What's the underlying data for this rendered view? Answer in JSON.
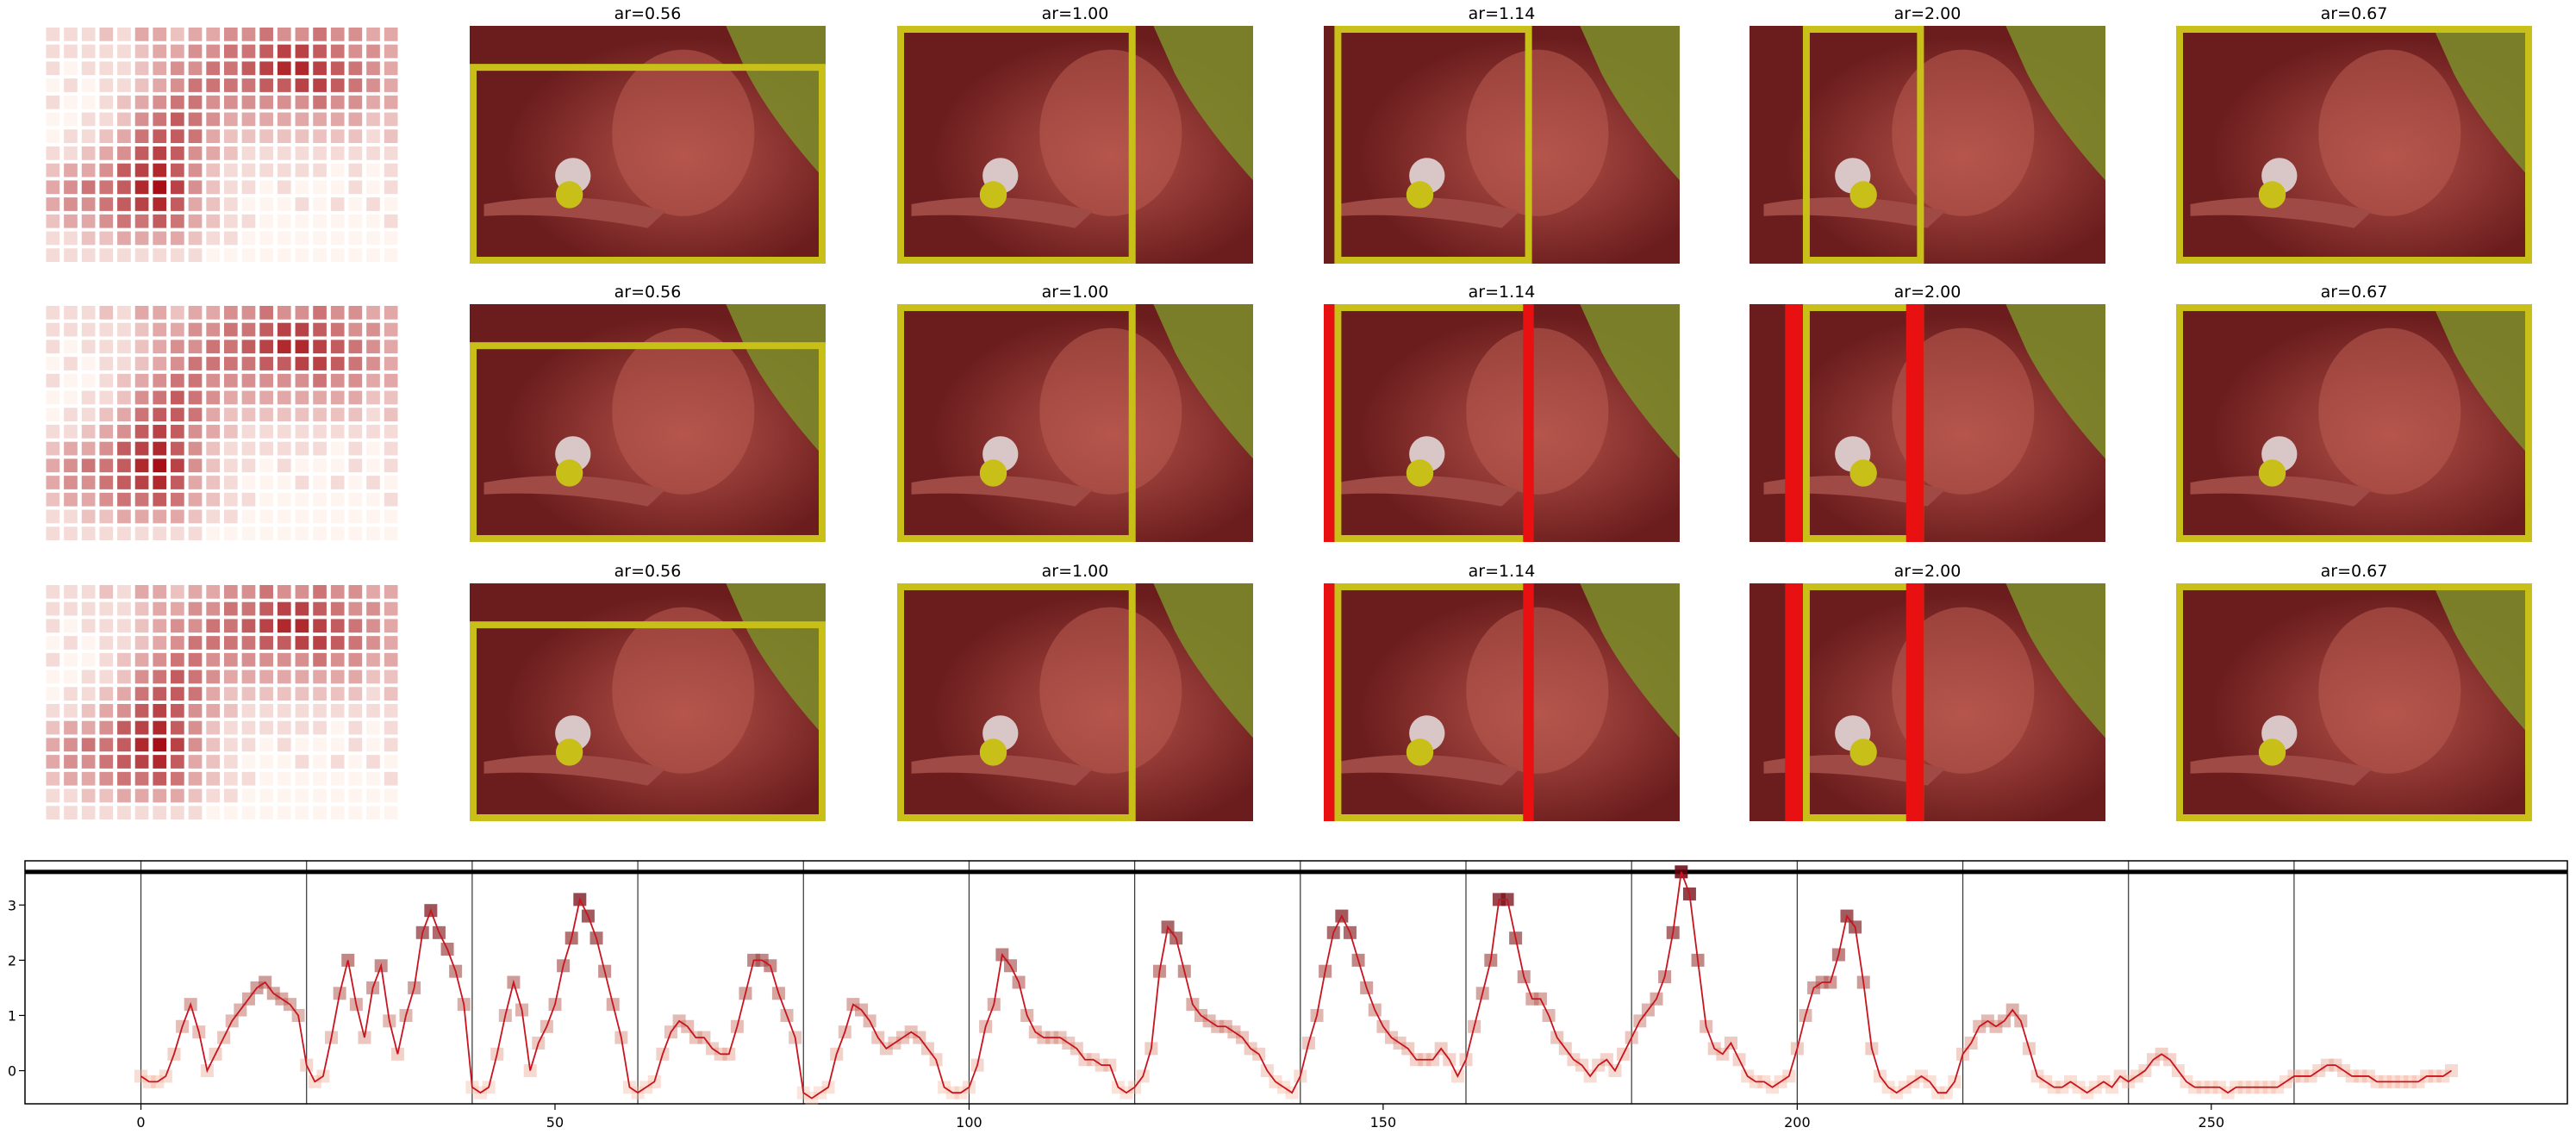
{
  "heatmap": [
    [
      1,
      1,
      1,
      2,
      1,
      3,
      3,
      2,
      3,
      3,
      4,
      4,
      5,
      4,
      4,
      5,
      4,
      4,
      3,
      3
    ],
    [
      1,
      1,
      1,
      1,
      1,
      2,
      3,
      3,
      4,
      4,
      5,
      5,
      6,
      7,
      7,
      6,
      5,
      4,
      4,
      3
    ],
    [
      1,
      0,
      1,
      1,
      1,
      2,
      3,
      4,
      4,
      5,
      5,
      6,
      7,
      8,
      8,
      7,
      6,
      5,
      4,
      3
    ],
    [
      0,
      1,
      0,
      1,
      1,
      2,
      3,
      4,
      5,
      5,
      5,
      5,
      6,
      6,
      7,
      7,
      6,
      5,
      4,
      3
    ],
    [
      1,
      0,
      0,
      1,
      2,
      3,
      4,
      5,
      5,
      4,
      4,
      4,
      4,
      4,
      4,
      5,
      4,
      4,
      3,
      3
    ],
    [
      0,
      0,
      1,
      1,
      2,
      4,
      5,
      6,
      5,
      4,
      3,
      3,
      3,
      3,
      3,
      3,
      3,
      3,
      2,
      2
    ],
    [
      0,
      1,
      1,
      2,
      3,
      5,
      6,
      6,
      5,
      3,
      2,
      2,
      2,
      2,
      2,
      2,
      2,
      2,
      1,
      2
    ],
    [
      1,
      1,
      2,
      3,
      4,
      6,
      7,
      6,
      4,
      3,
      2,
      1,
      1,
      1,
      1,
      1,
      1,
      1,
      1,
      1
    ],
    [
      2,
      3,
      3,
      4,
      6,
      7,
      8,
      6,
      4,
      2,
      1,
      1,
      1,
      1,
      1,
      1,
      0,
      1,
      0,
      1
    ],
    [
      3,
      4,
      5,
      5,
      6,
      8,
      9,
      7,
      4,
      2,
      1,
      1,
      0,
      1,
      0,
      0,
      0,
      1,
      0,
      1
    ],
    [
      3,
      4,
      4,
      5,
      6,
      7,
      8,
      6,
      3,
      2,
      1,
      0,
      0,
      0,
      1,
      0,
      1,
      0,
      1,
      0
    ],
    [
      2,
      3,
      3,
      4,
      5,
      5,
      6,
      5,
      3,
      2,
      1,
      1,
      0,
      0,
      0,
      0,
      0,
      0,
      0,
      1
    ],
    [
      1,
      1,
      2,
      2,
      3,
      3,
      3,
      3,
      2,
      1,
      1,
      0,
      0,
      0,
      0,
      0,
      0,
      0,
      0,
      0
    ],
    [
      1,
      1,
      1,
      1,
      1,
      1,
      1,
      1,
      1,
      0,
      0,
      0,
      0,
      0,
      0,
      0,
      0,
      0,
      0,
      0
    ]
  ],
  "heatmap_colors": [
    "#fff5f0",
    "#a50f15"
  ],
  "panels": [
    [
      "ar=0.56",
      "ar=1.00",
      "ar=1.14",
      "ar=2.00",
      "ar=0.67"
    ],
    [
      "ar=0.56",
      "ar=1.00",
      "ar=1.14",
      "ar=2.00",
      "ar=0.67"
    ],
    [
      "ar=0.56",
      "ar=1.00",
      "ar=1.14",
      "ar=2.00",
      "ar=0.67"
    ]
  ],
  "chart_data": {
    "type": "line",
    "x": [
      0,
      1,
      2,
      3,
      4,
      5,
      6,
      7,
      8,
      9,
      10,
      11,
      12,
      13,
      14,
      15,
      16,
      17,
      18,
      19,
      20,
      21,
      22,
      23,
      24,
      25,
      26,
      27,
      28,
      29,
      30,
      31,
      32,
      33,
      34,
      35,
      36,
      37,
      38,
      39,
      40,
      41,
      42,
      43,
      44,
      45,
      46,
      47,
      48,
      49,
      50,
      51,
      52,
      53,
      54,
      55,
      56,
      57,
      58,
      59,
      60,
      61,
      62,
      63,
      64,
      65,
      66,
      67,
      68,
      69,
      70,
      71,
      72,
      73,
      74,
      75,
      76,
      77,
      78,
      79,
      80,
      81,
      82,
      83,
      84,
      85,
      86,
      87,
      88,
      89,
      90,
      91,
      92,
      93,
      94,
      95,
      96,
      97,
      98,
      99,
      100,
      101,
      102,
      103,
      104,
      105,
      106,
      107,
      108,
      109,
      110,
      111,
      112,
      113,
      114,
      115,
      116,
      117,
      118,
      119,
      120,
      121,
      122,
      123,
      124,
      125,
      126,
      127,
      128,
      129,
      130,
      131,
      132,
      133,
      134,
      135,
      136,
      137,
      138,
      139,
      140,
      141,
      142,
      143,
      144,
      145,
      146,
      147,
      148,
      149,
      150,
      151,
      152,
      153,
      154,
      155,
      156,
      157,
      158,
      159,
      160,
      161,
      162,
      163,
      164,
      165,
      166,
      167,
      168,
      169,
      170,
      171,
      172,
      173,
      174,
      175,
      176,
      177,
      178,
      179,
      180,
      181,
      182,
      183,
      184,
      185,
      186,
      187,
      188,
      189,
      190,
      191,
      192,
      193,
      194,
      195,
      196,
      197,
      198,
      199,
      200,
      201,
      202,
      203,
      204,
      205,
      206,
      207,
      208,
      209,
      210,
      211,
      212,
      213,
      214,
      215,
      216,
      217,
      218,
      219,
      220,
      221,
      222,
      223,
      224,
      225,
      226,
      227,
      228,
      229,
      230,
      231,
      232,
      233,
      234,
      235,
      236,
      237,
      238,
      239,
      240,
      241,
      242,
      243,
      244,
      245,
      246,
      247,
      248,
      249,
      250,
      251,
      252,
      253,
      254,
      255,
      256,
      257,
      258,
      259,
      260,
      261,
      262,
      263,
      264,
      265,
      266,
      267,
      268,
      269,
      270,
      271,
      272,
      273,
      274,
      275,
      276,
      277,
      278,
      279
    ],
    "values": [
      -0.1,
      -0.2,
      -0.2,
      -0.1,
      0.3,
      0.8,
      1.2,
      0.7,
      0.0,
      0.3,
      0.6,
      0.9,
      1.1,
      1.3,
      1.5,
      1.6,
      1.4,
      1.3,
      1.2,
      1.0,
      0.1,
      -0.2,
      -0.1,
      0.6,
      1.4,
      2.0,
      1.2,
      0.6,
      1.5,
      1.9,
      0.9,
      0.3,
      1.0,
      1.5,
      2.5,
      2.9,
      2.5,
      2.2,
      1.8,
      1.2,
      -0.3,
      -0.4,
      -0.3,
      0.3,
      1.0,
      1.6,
      1.1,
      0.0,
      0.5,
      0.8,
      1.2,
      1.9,
      2.4,
      3.1,
      2.8,
      2.4,
      1.8,
      1.2,
      0.6,
      -0.3,
      -0.4,
      -0.3,
      -0.2,
      0.3,
      0.7,
      0.9,
      0.8,
      0.6,
      0.6,
      0.4,
      0.3,
      0.3,
      0.8,
      1.4,
      2.0,
      2.0,
      1.9,
      1.4,
      1.0,
      0.6,
      -0.4,
      -0.5,
      -0.4,
      -0.3,
      0.3,
      0.7,
      1.2,
      1.1,
      0.9,
      0.6,
      0.4,
      0.5,
      0.6,
      0.7,
      0.6,
      0.4,
      0.2,
      -0.3,
      -0.4,
      -0.4,
      -0.3,
      0.1,
      0.8,
      1.2,
      2.1,
      1.9,
      1.6,
      1.0,
      0.7,
      0.6,
      0.6,
      0.6,
      0.5,
      0.4,
      0.2,
      0.2,
      0.1,
      0.1,
      -0.3,
      -0.4,
      -0.3,
      -0.1,
      0.4,
      1.8,
      2.6,
      2.4,
      1.8,
      1.2,
      1.0,
      0.9,
      0.8,
      0.8,
      0.7,
      0.6,
      0.4,
      0.3,
      0.0,
      -0.2,
      -0.3,
      -0.4,
      -0.1,
      0.5,
      1.0,
      1.8,
      2.5,
      2.8,
      2.5,
      2.0,
      1.5,
      1.1,
      0.8,
      0.6,
      0.5,
      0.4,
      0.2,
      0.2,
      0.2,
      0.4,
      0.2,
      -0.1,
      0.2,
      0.8,
      1.4,
      2.0,
      3.1,
      3.1,
      2.4,
      1.7,
      1.3,
      1.3,
      1.0,
      0.6,
      0.4,
      0.2,
      0.1,
      -0.1,
      0.1,
      0.2,
      0.0,
      0.3,
      0.6,
      0.9,
      1.1,
      1.3,
      1.7,
      2.5,
      3.6,
      3.2,
      2.0,
      0.8,
      0.4,
      0.3,
      0.5,
      0.2,
      -0.1,
      -0.2,
      -0.2,
      -0.3,
      -0.2,
      -0.1,
      0.4,
      1.0,
      1.5,
      1.6,
      1.6,
      2.1,
      2.8,
      2.6,
      1.6,
      0.4,
      -0.1,
      -0.3,
      -0.4,
      -0.3,
      -0.2,
      -0.1,
      -0.2,
      -0.4,
      -0.4,
      -0.2,
      0.3,
      0.5,
      0.8,
      0.9,
      0.8,
      0.9,
      1.1,
      0.9,
      0.4,
      -0.1,
      -0.2,
      -0.3,
      -0.3,
      -0.2,
      -0.3,
      -0.4,
      -0.3,
      -0.2,
      -0.3,
      -0.1,
      -0.2,
      -0.1,
      0.0,
      0.2,
      0.3,
      0.2,
      0.0,
      -0.2,
      -0.3,
      -0.3,
      -0.3,
      -0.3,
      -0.4,
      -0.3,
      -0.3,
      -0.3,
      -0.3,
      -0.3,
      -0.3,
      -0.2,
      -0.1,
      -0.1,
      -0.1,
      0.0,
      0.1,
      0.1,
      0.0,
      -0.1,
      -0.1,
      -0.1,
      -0.2,
      -0.2,
      -0.2,
      -0.2,
      -0.2,
      -0.2,
      -0.1,
      -0.1,
      -0.1,
      0.0
    ],
    "color": "#c8141e",
    "marker_colors": [
      "#fcbba1",
      "#67000d"
    ],
    "xlim": [
      -14,
      293
    ],
    "ylim": [
      -0.6,
      3.8
    ],
    "xticks": [
      0,
      50,
      100,
      150,
      200,
      250
    ],
    "yticks": [
      0,
      1,
      2,
      3
    ],
    "vlines": [
      0,
      20,
      40,
      60,
      80,
      100,
      120,
      140,
      160,
      180,
      200,
      220,
      240,
      260
    ],
    "hline": 3.6
  }
}
